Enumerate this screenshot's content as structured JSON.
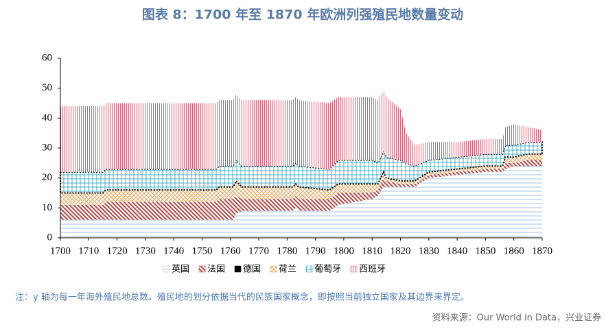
{
  "chart_data": {
    "type": "stacked-area",
    "title": "图表 8：1700 年至 1870 年欧洲列强殖民地数量变动",
    "note": "注：y 轴为每一年海外殖民地总数。殖民地的划分依据当代的民族国家概念，即按照当前独立国家及其边界来界定。",
    "source": "资料来源：Our World in Data，兴业证券",
    "x": [
      1700,
      1715,
      1716,
      1755,
      1756,
      1761,
      1762,
      1764,
      1782,
      1783,
      1784,
      1795,
      1798,
      1810,
      1812,
      1814,
      1815,
      1820,
      1822,
      1825,
      1830,
      1840,
      1850,
      1856,
      1857,
      1860,
      1865,
      1870
    ],
    "series": [
      {
        "name": "英国",
        "color": "#9dc3e6",
        "pattern": "horizontal",
        "values": [
          6,
          6,
          6,
          6,
          6,
          6,
          8,
          9,
          9,
          10,
          9,
          9,
          11,
          13,
          14,
          17,
          17,
          17,
          17,
          17,
          20,
          21,
          22,
          22,
          23,
          24,
          24,
          24
        ]
      },
      {
        "name": "法国",
        "color": "#b5403c",
        "pattern": "diagonal",
        "values": [
          5,
          5,
          6,
          6,
          7,
          7,
          6,
          4,
          4,
          4,
          4,
          4,
          4,
          2,
          2,
          3,
          2,
          1,
          1,
          1,
          1,
          1,
          1,
          1,
          2,
          1,
          2,
          2
        ]
      },
      {
        "name": "德国",
        "color": "#000000",
        "pattern": "solid",
        "values": [
          0,
          0,
          0,
          0,
          0,
          0,
          0,
          0,
          0,
          0,
          0,
          0,
          0,
          0,
          0,
          0,
          0,
          0,
          0,
          0,
          0,
          0,
          0,
          0,
          0,
          0,
          0,
          0
        ]
      },
      {
        "name": "荷兰",
        "color": "#e8a860",
        "pattern": "crosshatch",
        "values": [
          4,
          4,
          4,
          4,
          4,
          4,
          5,
          4,
          4,
          4,
          4,
          3,
          3,
          3,
          2,
          2,
          1,
          1,
          1,
          1,
          1,
          1,
          1,
          1,
          2,
          2,
          2,
          2
        ]
      },
      {
        "name": "葡萄牙",
        "color": "#4bacc6",
        "pattern": "grid",
        "values": [
          7,
          7,
          7,
          7,
          7,
          7,
          7,
          7,
          7,
          7,
          7,
          7,
          8,
          8,
          7,
          7,
          7,
          7,
          6,
          5,
          4,
          4,
          4,
          4,
          4,
          4,
          4,
          4
        ]
      },
      {
        "name": "西班牙",
        "color": "#e05a6e",
        "pattern": "vertical",
        "values": [
          22,
          22,
          22,
          22,
          22,
          22,
          22,
          22,
          22,
          22,
          22,
          22,
          21,
          21,
          21,
          20,
          20,
          17,
          10,
          7,
          6,
          5,
          5,
          5,
          6,
          7,
          5,
          4
        ]
      }
    ],
    "xlim": [
      1700,
      1870
    ],
    "xticks": [
      1700,
      1710,
      1720,
      1730,
      1740,
      1750,
      1760,
      1770,
      1780,
      1790,
      1800,
      1810,
      1820,
      1830,
      1840,
      1850,
      1860,
      1870
    ],
    "ylim": [
      0,
      60
    ],
    "yticks": [
      0,
      10,
      20,
      30,
      40,
      50,
      60
    ]
  }
}
